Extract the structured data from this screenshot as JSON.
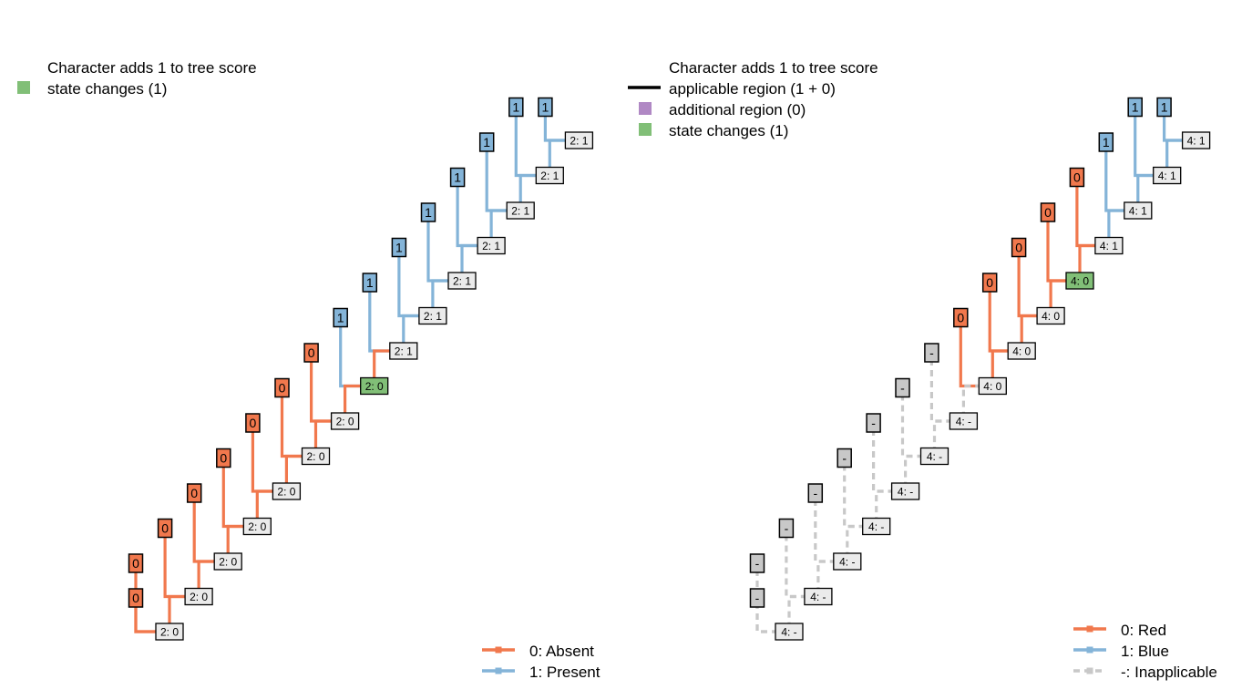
{
  "colors": {
    "absent": "#F1784D",
    "present": "#84B4D8",
    "inapplicable": "#C8C8C8",
    "node_fill": "#EBEBEB",
    "change_fill": "#81BF77",
    "additional_region": "#B088C4",
    "applicable_line": "#000000"
  },
  "left_panel": {
    "score_header": "Character adds 1 to tree score",
    "state_changes": "state changes (1)",
    "legend": [
      {
        "label": "0: Absent",
        "color_key": "absent"
      },
      {
        "label": "1: Present",
        "color_key": "present"
      }
    ],
    "tips": [
      "0",
      "0",
      "0",
      "0",
      "0",
      "0",
      "0",
      "0",
      "1",
      "1",
      "1",
      "1",
      "1",
      "1",
      "1",
      "1"
    ],
    "nodes": [
      "2: 0",
      "2: 0",
      "2: 0",
      "2: 0",
      "2: 0",
      "2: 0",
      "2: 0",
      "2: 0",
      "2: 1",
      "2: 1",
      "2: 1",
      "2: 1",
      "2: 1",
      "2: 1",
      "2: 1"
    ],
    "changed_node": 7
  },
  "right_panel": {
    "score_header": "Character adds 1 to tree score",
    "applicable_region": "applicable region (1 + 0)",
    "additional_region": "additional region (0)",
    "state_changes": "state changes (1)",
    "legend": [
      {
        "label": "0: Red",
        "color_key": "absent"
      },
      {
        "label": "1: Blue",
        "color_key": "present"
      },
      {
        "label": "-: Inapplicable",
        "color_key": "inapplicable"
      }
    ],
    "tips": [
      "-",
      "-",
      "-",
      "-",
      "-",
      "-",
      "-",
      "-",
      "0",
      "0",
      "0",
      "0",
      "0",
      "1",
      "1",
      "1"
    ],
    "nodes": [
      "4: -",
      "4: -",
      "4: -",
      "4: -",
      "4: -",
      "4: -",
      "4: -",
      "4: 0",
      "4: 0",
      "4: 0",
      "4: 0",
      "4: 1",
      "4: 1",
      "4: 1",
      "4: 1"
    ],
    "changed_node": 10
  }
}
